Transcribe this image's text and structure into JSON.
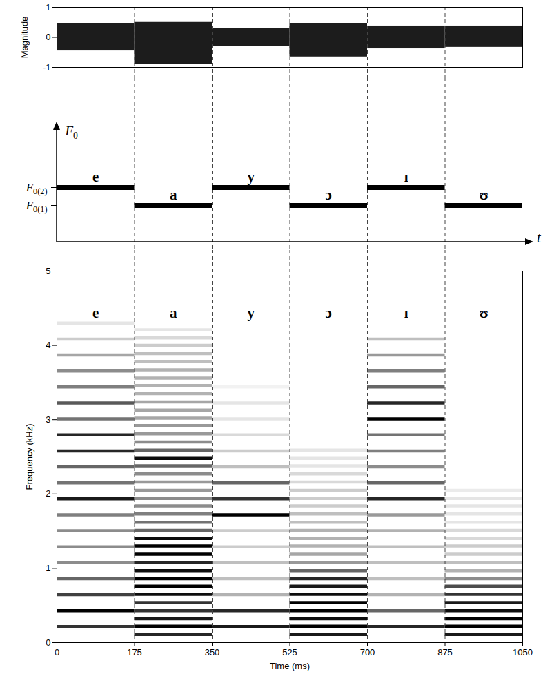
{
  "chart_data": [
    {
      "type": "range",
      "ylabel": "Magnitude",
      "xlim": [
        0,
        1050
      ],
      "ylim": [
        -1,
        1
      ],
      "yticks": [
        -1,
        0,
        1
      ],
      "tick_labels": "y",
      "segments": [
        {
          "start": 0,
          "end": 175,
          "min": -0.45,
          "max": 0.45
        },
        {
          "start": 175,
          "end": 350,
          "min": -0.9,
          "max": 0.5
        },
        {
          "start": 350,
          "end": 525,
          "min": -0.3,
          "max": 0.3
        },
        {
          "start": 525,
          "end": 700,
          "min": -0.65,
          "max": 0.45
        },
        {
          "start": 700,
          "end": 875,
          "min": -0.38,
          "max": 0.38
        },
        {
          "start": 875,
          "end": 1050,
          "min": -0.33,
          "max": 0.38
        }
      ]
    },
    {
      "type": "step",
      "xlabel": "t",
      "ylabel": "F0",
      "xlim": [
        0,
        1050
      ],
      "levels": [
        "F0(1)",
        "F0(2)"
      ],
      "tick_labels": "y",
      "segments": [
        {
          "start": 0,
          "end": 175,
          "label": "e",
          "level": "F0(2)"
        },
        {
          "start": 175,
          "end": 350,
          "label": "a",
          "level": "F0(1)"
        },
        {
          "start": 350,
          "end": 525,
          "label": "y",
          "level": "F0(2)"
        },
        {
          "start": 525,
          "end": 700,
          "label": "ɔ",
          "level": "F0(1)"
        },
        {
          "start": 700,
          "end": 875,
          "label": "ɪ",
          "level": "F0(2)"
        },
        {
          "start": 875,
          "end": 1050,
          "label": "ʊ",
          "level": "F0(1)"
        }
      ]
    },
    {
      "type": "spectrogram",
      "xlabel": "Time (ms)",
      "ylabel": "Frequency (kHz)",
      "xlim": [
        0,
        1050
      ],
      "ylim": [
        0,
        5
      ],
      "xticks": [
        0,
        175,
        350,
        525,
        700,
        875,
        1050
      ],
      "yticks": [
        0,
        1,
        2,
        3,
        4,
        5
      ],
      "segments": [
        {
          "start": 0,
          "end": 175,
          "label": "e",
          "frequencies": [
            0.215,
            0.43,
            0.645,
            0.86,
            1.075,
            1.29,
            1.505,
            1.72,
            1.935,
            2.15,
            2.365,
            2.58,
            2.795,
            3.01,
            3.225,
            3.44,
            3.655,
            3.87,
            4.085,
            4.3
          ],
          "intensities": [
            0.8,
            1,
            0.75,
            0.6,
            0.45,
            0.45,
            0.45,
            0.5,
            0.9,
            0.55,
            0.6,
            0.85,
            0.85,
            0.55,
            0.65,
            0.5,
            0.45,
            0.35,
            0.2,
            0.1
          ]
        },
        {
          "start": 175,
          "end": 350,
          "label": "a",
          "frequencies": [
            0.11,
            0.22,
            0.32,
            0.43,
            0.54,
            0.65,
            0.76,
            0.86,
            0.97,
            1.08,
            1.19,
            1.3,
            1.4,
            1.51,
            1.62,
            1.73,
            1.84,
            1.94,
            2.05,
            2.16,
            2.27,
            2.38,
            2.48,
            2.59,
            2.7,
            2.81,
            2.92,
            3.02,
            3.13,
            3.24,
            3.35,
            3.46,
            3.56,
            3.67,
            3.78,
            3.89,
            4.0,
            4.1,
            4.21
          ],
          "intensities": [
            0.85,
            1,
            0.9,
            0.8,
            0.8,
            0.95,
            1,
            1,
            0.95,
            0.85,
            1,
            1,
            0.95,
            0.6,
            0.55,
            0.5,
            0.45,
            0.45,
            0.4,
            0.4,
            0.45,
            0.6,
            0.95,
            0.6,
            0.45,
            0.4,
            0.4,
            0.35,
            0.35,
            0.35,
            0.3,
            0.3,
            0.3,
            0.3,
            0.25,
            0.25,
            0.2,
            0.15,
            0.1
          ]
        },
        {
          "start": 350,
          "end": 525,
          "label": "y",
          "frequencies": [
            0.215,
            0.43,
            0.645,
            0.86,
            1.075,
            1.29,
            1.505,
            1.72,
            1.935,
            2.15,
            2.365,
            2.58,
            2.795,
            3.01,
            3.225,
            3.44
          ],
          "intensities": [
            0.9,
            0.85,
            0.3,
            0.25,
            0.25,
            0.2,
            0.2,
            1,
            0.8,
            0.6,
            0.25,
            0.2,
            0.15,
            0.1,
            0.1,
            0.05
          ]
        },
        {
          "start": 525,
          "end": 700,
          "label": "ɔ",
          "frequencies": [
            0.11,
            0.22,
            0.32,
            0.43,
            0.54,
            0.65,
            0.76,
            0.86,
            0.97,
            1.08,
            1.19,
            1.3,
            1.4,
            1.51,
            1.62,
            1.73,
            1.84,
            1.94,
            2.05,
            2.16,
            2.27,
            2.38,
            2.48,
            2.59
          ],
          "intensities": [
            0.9,
            1,
            0.95,
            1,
            1,
            0.95,
            0.9,
            0.85,
            0.6,
            0.4,
            0.35,
            0.3,
            0.3,
            0.3,
            0.25,
            0.25,
            0.2,
            0.2,
            0.2,
            0.15,
            0.15,
            0.1,
            0.1,
            0.1
          ]
        },
        {
          "start": 700,
          "end": 875,
          "label": "ɪ",
          "frequencies": [
            0.215,
            0.43,
            0.645,
            0.86,
            1.075,
            1.29,
            1.505,
            1.72,
            1.935,
            2.15,
            2.365,
            2.58,
            2.795,
            3.01,
            3.225,
            3.44,
            3.655,
            3.87,
            4.085
          ],
          "intensities": [
            0.85,
            0.6,
            0.3,
            0.25,
            0.25,
            0.25,
            0.3,
            0.4,
            0.85,
            0.6,
            0.45,
            0.5,
            0.55,
            1,
            0.85,
            0.6,
            0.5,
            0.4,
            0.25
          ]
        },
        {
          "start": 875,
          "end": 1050,
          "label": "ʊ",
          "frequencies": [
            0.11,
            0.22,
            0.32,
            0.43,
            0.54,
            0.65,
            0.76,
            0.86,
            0.97,
            1.08,
            1.19,
            1.3,
            1.4,
            1.51,
            1.62,
            1.73,
            1.84,
            1.94,
            2.05
          ],
          "intensities": [
            0.9,
            1,
            1,
            0.95,
            0.9,
            0.8,
            0.7,
            0.45,
            0.3,
            0.25,
            0.2,
            0.2,
            0.15,
            0.15,
            0.1,
            0.1,
            0.1,
            0.1,
            0.08
          ]
        }
      ]
    }
  ]
}
